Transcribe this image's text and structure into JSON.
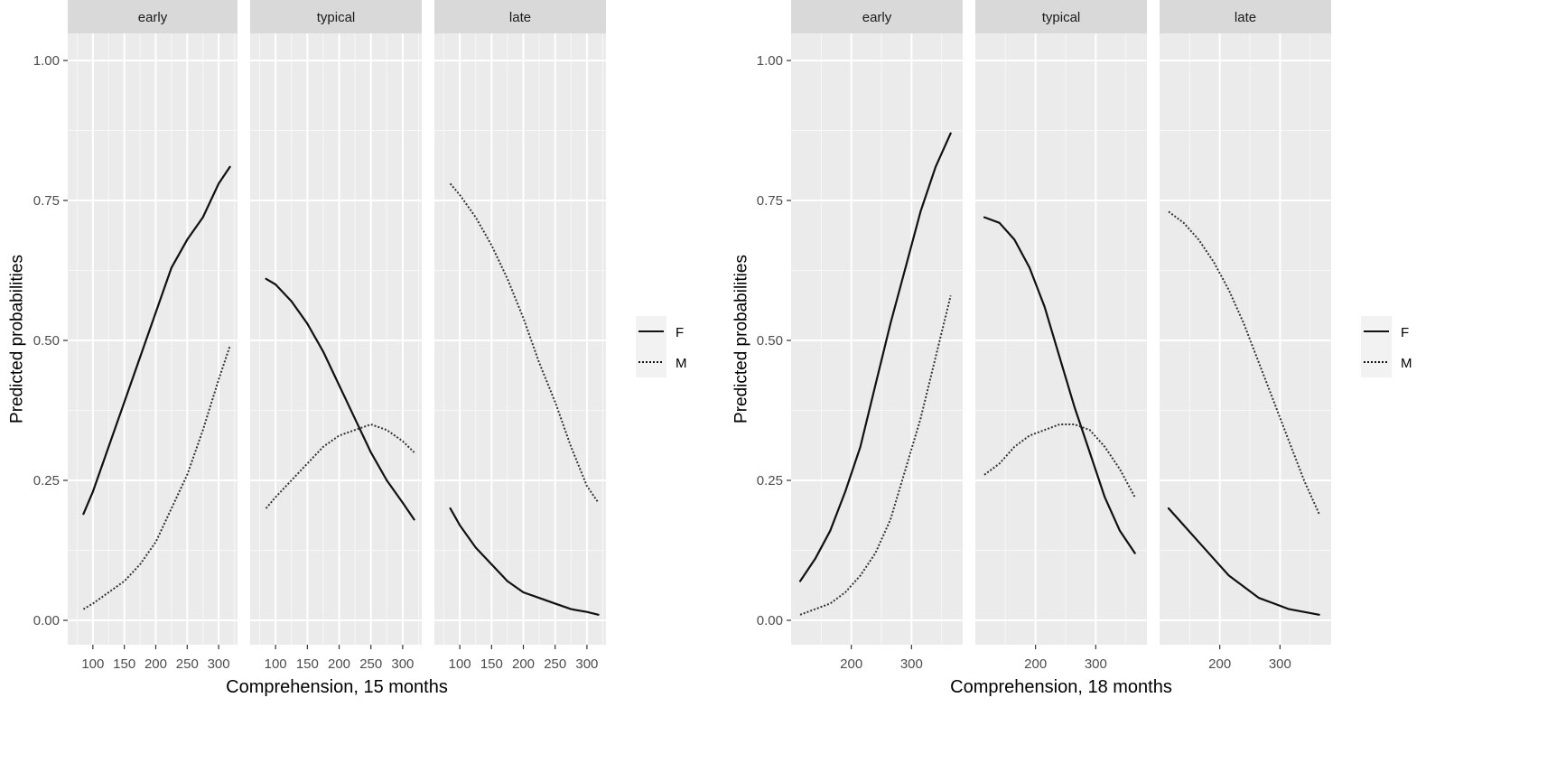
{
  "chart_data": [
    {
      "type": "line",
      "facets": [
        "early",
        "typical",
        "late"
      ],
      "xlabel": "Comprehension, 15 months",
      "ylabel": "Predicted probabilities",
      "ylim": [
        0,
        1
      ],
      "yticks": [
        0.0,
        0.25,
        0.5,
        0.75,
        1.0
      ],
      "ytick_labels": [
        "0.00",
        "0.25",
        "0.50",
        "0.75",
        "1.00"
      ],
      "xlim": [
        60,
        330
      ],
      "xticks": [
        100,
        150,
        200,
        250,
        300
      ],
      "xtick_labels": [
        "100",
        "150",
        "200",
        "250",
        "300"
      ],
      "legend": {
        "placement": "right",
        "entries": [
          {
            "name": "F",
            "linetype": "solid"
          },
          {
            "name": "M",
            "linetype": "dotted"
          }
        ]
      },
      "grid": true,
      "panels": [
        {
          "facet": "early",
          "series": [
            {
              "name": "F",
              "x": [
                85,
                100,
                125,
                150,
                175,
                200,
                225,
                250,
                275,
                300,
                318
              ],
              "y": [
                0.19,
                0.23,
                0.31,
                0.39,
                0.47,
                0.55,
                0.63,
                0.68,
                0.72,
                0.78,
                0.81
              ]
            },
            {
              "name": "M",
              "x": [
                85,
                100,
                125,
                150,
                175,
                200,
                225,
                250,
                275,
                300,
                318
              ],
              "y": [
                0.02,
                0.03,
                0.05,
                0.07,
                0.1,
                0.14,
                0.2,
                0.26,
                0.34,
                0.43,
                0.49
              ]
            }
          ]
        },
        {
          "facet": "typical",
          "series": [
            {
              "name": "F",
              "x": [
                85,
                100,
                125,
                150,
                175,
                200,
                225,
                250,
                275,
                300,
                318
              ],
              "y": [
                0.61,
                0.6,
                0.57,
                0.53,
                0.48,
                0.42,
                0.36,
                0.3,
                0.25,
                0.21,
                0.18
              ]
            },
            {
              "name": "M",
              "x": [
                85,
                100,
                125,
                150,
                175,
                200,
                225,
                250,
                275,
                300,
                318
              ],
              "y": [
                0.2,
                0.22,
                0.25,
                0.28,
                0.31,
                0.33,
                0.34,
                0.35,
                0.34,
                0.32,
                0.3
              ]
            }
          ]
        },
        {
          "facet": "late",
          "series": [
            {
              "name": "F",
              "x": [
                85,
                100,
                125,
                150,
                175,
                200,
                225,
                250,
                275,
                300,
                318
              ],
              "y": [
                0.2,
                0.17,
                0.13,
                0.1,
                0.07,
                0.05,
                0.04,
                0.03,
                0.02,
                0.015,
                0.01
              ]
            },
            {
              "name": "M",
              "x": [
                85,
                100,
                125,
                150,
                175,
                200,
                225,
                250,
                275,
                300,
                318
              ],
              "y": [
                0.78,
                0.76,
                0.72,
                0.67,
                0.61,
                0.54,
                0.46,
                0.39,
                0.31,
                0.24,
                0.21
              ]
            }
          ]
        }
      ]
    },
    {
      "type": "line",
      "facets": [
        "early",
        "typical",
        "late"
      ],
      "xlabel": "Comprehension, 18 months",
      "ylabel": "Predicted probabilities",
      "ylim": [
        0,
        1
      ],
      "yticks": [
        0.0,
        0.25,
        0.5,
        0.75,
        1.0
      ],
      "ytick_labels": [
        "0.00",
        "0.25",
        "0.50",
        "0.75",
        "1.00"
      ],
      "xlim": [
        100,
        385
      ],
      "xticks": [
        200,
        300
      ],
      "xtick_labels": [
        "200",
        "300"
      ],
      "legend": {
        "placement": "right",
        "entries": [
          {
            "name": "F",
            "linetype": "solid"
          },
          {
            "name": "M",
            "linetype": "dotted"
          }
        ]
      },
      "grid": true,
      "panels": [
        {
          "facet": "early",
          "series": [
            {
              "name": "F",
              "x": [
                115,
                140,
                165,
                190,
                215,
                240,
                265,
                290,
                315,
                340,
                365
              ],
              "y": [
                0.07,
                0.11,
                0.16,
                0.23,
                0.31,
                0.42,
                0.53,
                0.63,
                0.73,
                0.81,
                0.87
              ]
            },
            {
              "name": "M",
              "x": [
                115,
                140,
                165,
                190,
                215,
                240,
                265,
                290,
                315,
                340,
                365
              ],
              "y": [
                0.01,
                0.02,
                0.03,
                0.05,
                0.08,
                0.12,
                0.18,
                0.27,
                0.36,
                0.47,
                0.58
              ]
            }
          ]
        },
        {
          "facet": "typical",
          "series": [
            {
              "name": "F",
              "x": [
                115,
                140,
                165,
                190,
                215,
                240,
                265,
                290,
                315,
                340,
                365
              ],
              "y": [
                0.72,
                0.71,
                0.68,
                0.63,
                0.56,
                0.47,
                0.38,
                0.3,
                0.22,
                0.16,
                0.12
              ]
            },
            {
              "name": "M",
              "x": [
                115,
                140,
                165,
                190,
                215,
                240,
                265,
                290,
                315,
                340,
                365
              ],
              "y": [
                0.26,
                0.28,
                0.31,
                0.33,
                0.34,
                0.35,
                0.35,
                0.34,
                0.31,
                0.27,
                0.22
              ]
            }
          ]
        },
        {
          "facet": "late",
          "series": [
            {
              "name": "F",
              "x": [
                115,
                140,
                165,
                190,
                215,
                240,
                265,
                290,
                315,
                340,
                365
              ],
              "y": [
                0.2,
                0.17,
                0.14,
                0.11,
                0.08,
                0.06,
                0.04,
                0.03,
                0.02,
                0.015,
                0.01
              ]
            },
            {
              "name": "M",
              "x": [
                115,
                140,
                165,
                190,
                215,
                240,
                265,
                290,
                315,
                340,
                365
              ],
              "y": [
                0.73,
                0.71,
                0.68,
                0.64,
                0.59,
                0.53,
                0.46,
                0.39,
                0.32,
                0.25,
                0.19
              ]
            }
          ]
        }
      ]
    }
  ]
}
